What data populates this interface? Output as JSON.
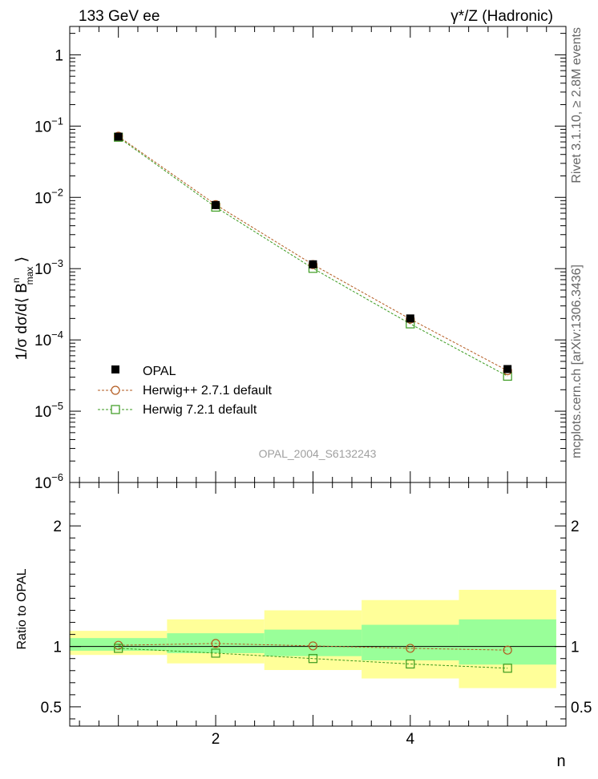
{
  "header": {
    "left_title": "133 GeV ee",
    "right_title": "γ*/Z (Hadronic)"
  },
  "side_labels": {
    "rivet": "Rivet 3.1.10, ≥ 2.8M events",
    "mcplots": "mcplots.cern.ch [arXiv:1306.3436]"
  },
  "watermark": "OPAL_2004_S6132243",
  "chart_data": [
    {
      "type": "scatter",
      "title": "133 GeV ee",
      "ylabel_parts": {
        "prefix": "1/σ dσ/d⟨ B",
        "sup": "n",
        "sub": "max",
        "suffix": " ⟩"
      },
      "yscale": "log",
      "ylim": [
        1e-06,
        2.5
      ],
      "xlim": [
        0.5,
        5.6
      ],
      "y_tick_labels": [
        {
          "value": 1e-06,
          "base": "10",
          "exp": "−6"
        },
        {
          "value": 1e-05,
          "base": "10",
          "exp": "−5"
        },
        {
          "value": 0.0001,
          "base": "10",
          "exp": "−4"
        },
        {
          "value": 0.001,
          "base": "10",
          "exp": "−3"
        },
        {
          "value": 0.01,
          "base": "10",
          "exp": "−2"
        },
        {
          "value": 0.1,
          "base": "10",
          "exp": "−1"
        },
        {
          "value": 1,
          "base": "1",
          "exp": ""
        }
      ],
      "series": [
        {
          "name": "OPAL",
          "marker": "filled-square",
          "color": "#000000",
          "x": [
            1,
            2,
            3,
            4,
            5
          ],
          "y": [
            0.071,
            0.0078,
            0.00115,
            0.0002,
            3.9e-05
          ]
        },
        {
          "name": "Herwig++ 2.7.1 default",
          "marker": "open-circle",
          "color": "#b35a1f",
          "x": [
            1,
            2,
            3,
            4,
            5
          ],
          "y": [
            0.072,
            0.0079,
            0.00114,
            0.000196,
            3.7e-05
          ]
        },
        {
          "name": "Herwig 7.2.1 default",
          "marker": "open-square",
          "color": "#3a9a1e",
          "x": [
            1,
            2,
            3,
            4,
            5
          ],
          "y": [
            0.0698,
            0.0073,
            0.00101,
            0.000168,
            3.1e-05
          ]
        }
      ],
      "legend_position": "lower-left"
    },
    {
      "type": "scatter",
      "ylabel": "Ratio to OPAL",
      "xlabel": "n",
      "ylim": [
        0.34,
        2.36
      ],
      "xlim": [
        0.5,
        5.6
      ],
      "x_ticks": [
        2,
        4
      ],
      "y_ticks": [
        0.5,
        1,
        2
      ],
      "x_tick_labels": [
        "2",
        "4"
      ],
      "y_tick_labels": [
        "0.5",
        "1",
        "2"
      ],
      "bands": {
        "edges": [
          0.5,
          1.5,
          2.5,
          3.5,
          4.5,
          5.5
        ],
        "inner_color": "#99ff99",
        "outer_color": "#ffff99",
        "inner": [
          [
            0.965,
            1.07
          ],
          [
            0.945,
            1.11
          ],
          [
            0.92,
            1.14
          ],
          [
            0.885,
            1.18
          ],
          [
            0.85,
            1.225
          ]
        ],
        "outer": [
          [
            0.93,
            1.13
          ],
          [
            0.86,
            1.225
          ],
          [
            0.805,
            1.3
          ],
          [
            0.735,
            1.385
          ],
          [
            0.655,
            1.47
          ]
        ]
      },
      "series": [
        {
          "name": "Herwig++ 2.7.1 default",
          "marker": "open-circle",
          "color": "#b35a1f",
          "x": [
            1,
            2,
            3,
            4,
            5
          ],
          "y": [
            1.01,
            1.025,
            1.005,
            0.985,
            0.97
          ]
        },
        {
          "name": "Herwig 7.2.1 default",
          "marker": "open-square",
          "color": "#3a9a1e",
          "x": [
            1,
            2,
            3,
            4,
            5
          ],
          "y": [
            0.985,
            0.945,
            0.9,
            0.855,
            0.82
          ]
        }
      ]
    }
  ]
}
